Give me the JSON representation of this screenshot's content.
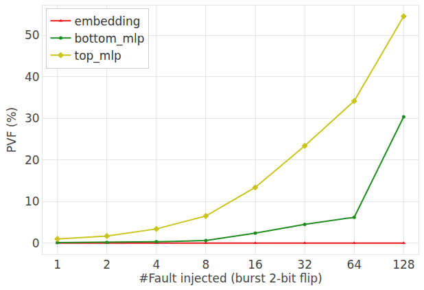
{
  "chart_data": {
    "type": "line",
    "x_label": "#Fault injected (burst 2-bit flip)",
    "y_label": "PVF (%)",
    "categories": [
      "1",
      "2",
      "4",
      "8",
      "16",
      "32",
      "64",
      "128"
    ],
    "series": [
      {
        "name": "embedding",
        "color": "#e8141c",
        "marker": "triangle-up",
        "values": [
          0,
          0,
          0,
          0,
          0,
          0,
          0,
          0
        ]
      },
      {
        "name": "bottom_mlp",
        "color": "#1e8c1e",
        "marker": "circle",
        "values": [
          0.1,
          0.15,
          0.3,
          0.6,
          2.4,
          4.5,
          6.2,
          30.4
        ]
      },
      {
        "name": "top_mlp",
        "color": "#c9c41e",
        "marker": "diamond",
        "values": [
          1.0,
          1.7,
          3.4,
          6.5,
          13.4,
          23.4,
          34.2,
          54.6
        ]
      }
    ],
    "ylim": [
      -2.7,
      57.2
    ],
    "yticks": [
      0,
      10,
      20,
      30,
      40,
      50
    ],
    "grid": true,
    "legend": "upper left"
  }
}
